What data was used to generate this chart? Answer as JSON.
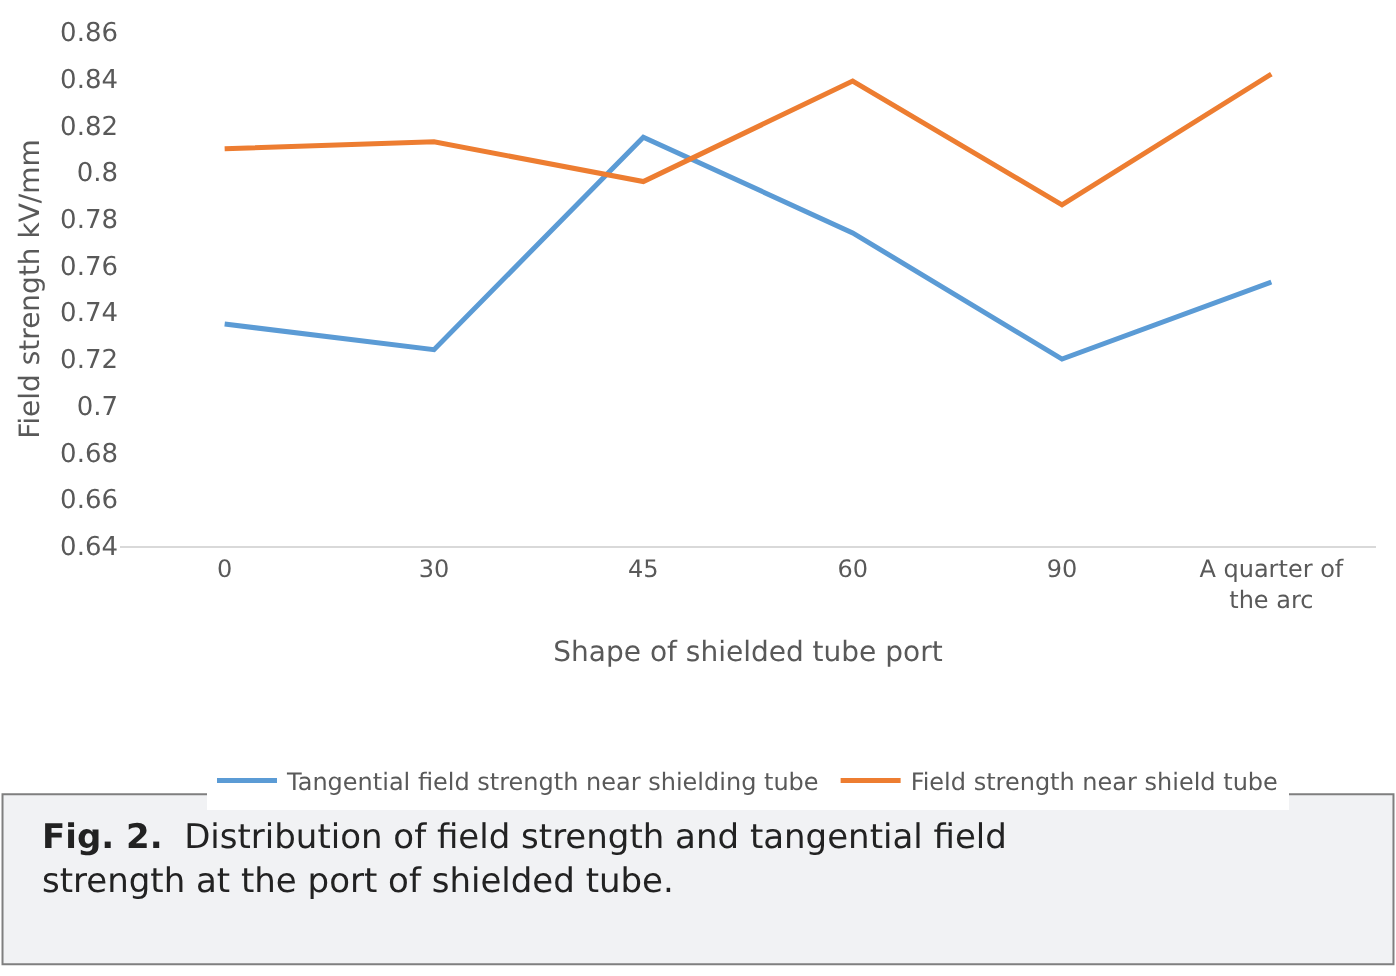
{
  "chart_data": {
    "type": "line",
    "xlabel": "Shape of shielded tube port",
    "ylabel": "Field strength kV/mm",
    "categories": [
      "0",
      "30",
      "45",
      "60",
      "90",
      "A quarter of the arc"
    ],
    "series": [
      {
        "name": "Tangential field strength near shielding tube",
        "color": "#5b9bd5",
        "values": [
          0.735,
          0.724,
          0.815,
          0.774,
          0.72,
          0.753
        ]
      },
      {
        "name": "Field strength near shield tube",
        "color": "#ed7d31",
        "values": [
          0.81,
          0.813,
          0.796,
          0.839,
          0.786,
          0.842
        ]
      }
    ],
    "ylim": [
      0.64,
      0.86
    ],
    "yticks": [
      0.64,
      0.66,
      0.68,
      0.7,
      0.72,
      0.74,
      0.76,
      0.78,
      0.8,
      0.82,
      0.84,
      0.86
    ],
    "grid": false,
    "legend": "bottom",
    "marker": "none",
    "line_style": "solid",
    "annotations": [
      "Fig. 2.",
      "Distribution of field strength and tangential field strength at the port of shielded tube."
    ]
  }
}
